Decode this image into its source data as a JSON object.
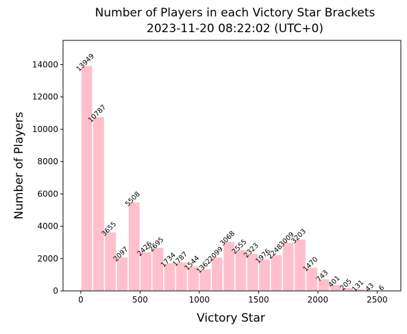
{
  "chart_data": {
    "type": "bar",
    "title_line1": "Number of Players in each Victory Star Brackets",
    "title_line2": "2023-11-20 08:22:02 (UTC+0)",
    "xlabel": "Victory Star",
    "ylabel": "Number of Players",
    "xlim": [
      -150,
      2700
    ],
    "ylim": [
      0,
      15500
    ],
    "xticks": [
      0,
      500,
      1000,
      1500,
      2000,
      2500
    ],
    "yticks": [
      0,
      2000,
      4000,
      6000,
      8000,
      10000,
      12000,
      14000
    ],
    "bin_width": 100,
    "bins": [
      {
        "x": 0,
        "value": 13949
      },
      {
        "x": 100,
        "value": 10787
      },
      {
        "x": 200,
        "value": 3655
      },
      {
        "x": 300,
        "value": 2097
      },
      {
        "x": 400,
        "value": 5508
      },
      {
        "x": 500,
        "value": 2426
      },
      {
        "x": 600,
        "value": 2695
      },
      {
        "x": 700,
        "value": 1734
      },
      {
        "x": 800,
        "value": 1787
      },
      {
        "x": 900,
        "value": 1544
      },
      {
        "x": 1000,
        "value": 1362
      },
      {
        "x": 1100,
        "value": 2099
      },
      {
        "x": 1200,
        "value": 3068
      },
      {
        "x": 1300,
        "value": 2555
      },
      {
        "x": 1400,
        "value": 2323
      },
      {
        "x": 1500,
        "value": 1976
      },
      {
        "x": 1600,
        "value": 2248
      },
      {
        "x": 1700,
        "value": 3009
      },
      {
        "x": 1800,
        "value": 3203
      },
      {
        "x": 1900,
        "value": 1470
      },
      {
        "x": 2000,
        "value": 743
      },
      {
        "x": 2100,
        "value": 401
      },
      {
        "x": 2200,
        "value": 205
      },
      {
        "x": 2300,
        "value": 131
      },
      {
        "x": 2400,
        "value": 43
      },
      {
        "x": 2500,
        "value": 6
      }
    ],
    "bar_color": "#ffc0cb",
    "bar_edge_color": "#ffffff",
    "grid": false,
    "legend": "none"
  }
}
